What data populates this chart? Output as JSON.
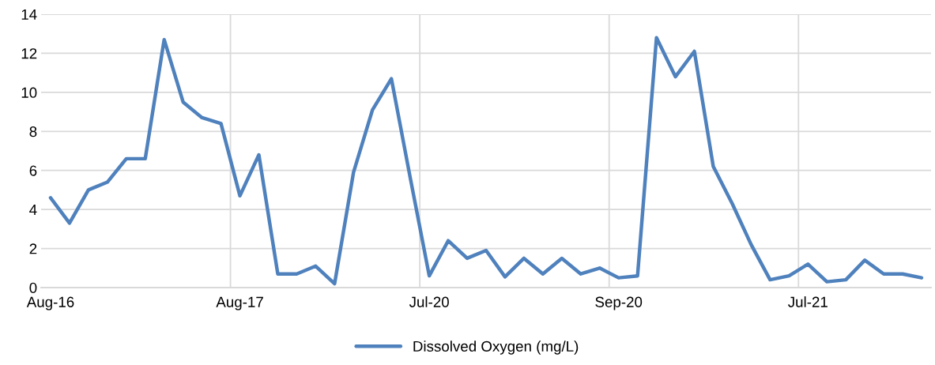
{
  "chart_data": {
    "type": "line",
    "categories": [
      "Aug-16",
      null,
      null,
      null,
      null,
      null,
      null,
      null,
      null,
      null,
      "Aug-17",
      null,
      null,
      null,
      null,
      null,
      null,
      null,
      null,
      null,
      "Jul-20",
      null,
      null,
      null,
      null,
      null,
      null,
      null,
      null,
      null,
      "Sep-20",
      null,
      null,
      null,
      null,
      null,
      null,
      null,
      null,
      null,
      "Jul-21",
      null,
      null,
      null,
      null,
      null,
      null
    ],
    "series": [
      {
        "name": "Dissolved Oxygen (mg/L)",
        "color": "#4f81bd",
        "values": [
          4.6,
          3.3,
          5.0,
          5.4,
          6.6,
          6.6,
          12.7,
          9.5,
          8.7,
          8.4,
          4.7,
          6.8,
          0.7,
          0.7,
          1.1,
          0.2,
          5.9,
          9.1,
          10.7,
          5.6,
          0.6,
          2.4,
          1.5,
          1.9,
          0.55,
          1.5,
          0.7,
          1.5,
          0.7,
          1.0,
          0.5,
          0.6,
          12.8,
          10.8,
          12.1,
          6.2,
          4.3,
          2.2,
          0.4,
          0.6,
          1.2,
          0.3,
          0.4,
          1.4,
          0.7,
          0.7,
          0.5
        ]
      }
    ],
    "ylim": [
      0,
      14
    ],
    "yticks": [
      0,
      2,
      4,
      6,
      8,
      10,
      12,
      14
    ],
    "grid": true,
    "legend": "bottom",
    "marker": "none",
    "line_style": "solid"
  }
}
